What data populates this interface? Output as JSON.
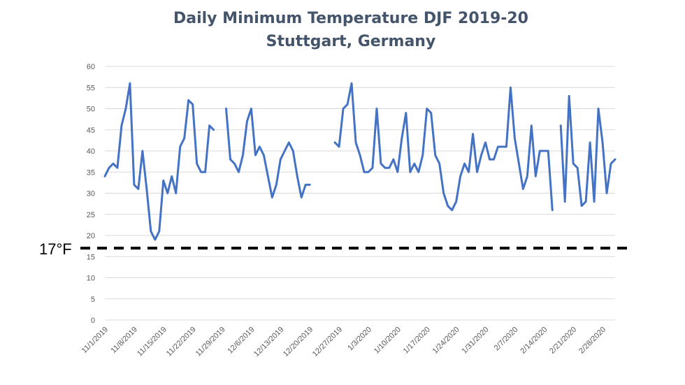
{
  "chart_data": {
    "type": "line",
    "title": "Daily Minimum Temperature DJF 2019-20",
    "subtitle": "Stuttgart, Germany",
    "xlabel": "",
    "ylabel": "",
    "ylim": [
      0,
      60
    ],
    "y_ticks": [
      "0",
      "5",
      "10",
      "15",
      "20",
      "25",
      "30",
      "35",
      "40",
      "45",
      "50",
      "55",
      "60"
    ],
    "x_tick_labels": [
      "11/1/2019",
      "11/8/2019",
      "11/15/2019",
      "11/22/2019",
      "11/29/2019",
      "12/6/2019",
      "12/13/2019",
      "12/20/2019",
      "12/27/2019",
      "1/3/2020",
      "1/10/2020",
      "1/17/2020",
      "1/24/2020",
      "1/31/2020",
      "2/7/2020",
      "2/14/2020",
      "2/21/2020",
      "2/28/2020"
    ],
    "x_start": "11/1/2019",
    "grid": true,
    "legend": "none",
    "line_color": "#4472c4",
    "series": [
      {
        "values": [
          34,
          36,
          37,
          36,
          46,
          50,
          56,
          32,
          31,
          40,
          31,
          21,
          19,
          21,
          33,
          30,
          34,
          30,
          41,
          43,
          52,
          51,
          37,
          35,
          35,
          46,
          45,
          null,
          null,
          50,
          38,
          37,
          35,
          39,
          47,
          50,
          39,
          41,
          39,
          34,
          29,
          32,
          38,
          40,
          42,
          40,
          34,
          29,
          32,
          32,
          null,
          null,
          null,
          null,
          null,
          42,
          41,
          50,
          51,
          56,
          42,
          39,
          35,
          35,
          36,
          50,
          37,
          36,
          36,
          38,
          35,
          43,
          49,
          35,
          37,
          35,
          39,
          50,
          49,
          39,
          37,
          30,
          27,
          26,
          28,
          34,
          37,
          35,
          44,
          35,
          39,
          42,
          38,
          38,
          41,
          41,
          41,
          55,
          43,
          37,
          31,
          34,
          46,
          34,
          40,
          40,
          40,
          26,
          null,
          46,
          28,
          53,
          37,
          36,
          27,
          28,
          42,
          28,
          50,
          42,
          30,
          37,
          38
        ]
      }
    ],
    "threshold": {
      "value": 17,
      "label": "17°F"
    }
  }
}
